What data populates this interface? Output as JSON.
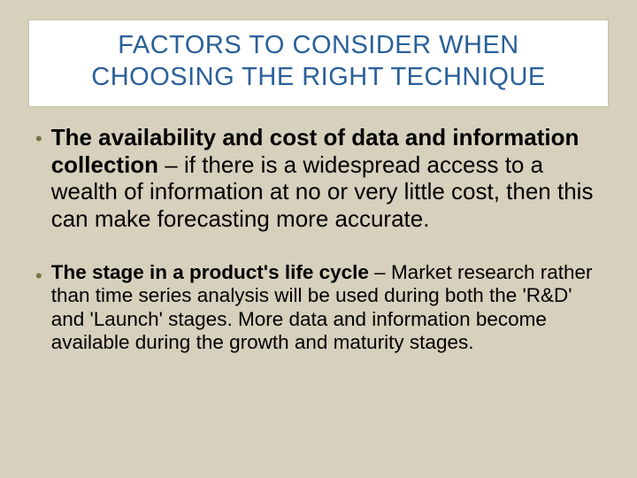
{
  "title": "FACTORS TO CONSIDER WHEN CHOOSING THE RIGHT TECHNIQUE",
  "bullets": [
    {
      "bold": "The availability and cost of data and information collection",
      "rest": " – if there is a widespread access to a wealth of information at no or very little cost, then this can make forecasting more accurate."
    },
    {
      "bold": "The stage in a product's life cycle",
      "rest": " – Market research rather than time series analysis will be used during both the 'R&D' and 'Launch' stages. More data and information become available during the growth and maturity stages."
    }
  ],
  "colors": {
    "background": "#d6d0bc",
    "title_box_bg": "#ffffff",
    "title_box_border": "#c8c1a6",
    "title_text": "#2a6099",
    "bullet_marker": "#7a7048",
    "body_text": "#000000"
  },
  "typography": {
    "title_fontsize": 29,
    "bullet1_fontsize": 26,
    "bullet2_fontsize": 22.5,
    "font_family": "Arial"
  }
}
